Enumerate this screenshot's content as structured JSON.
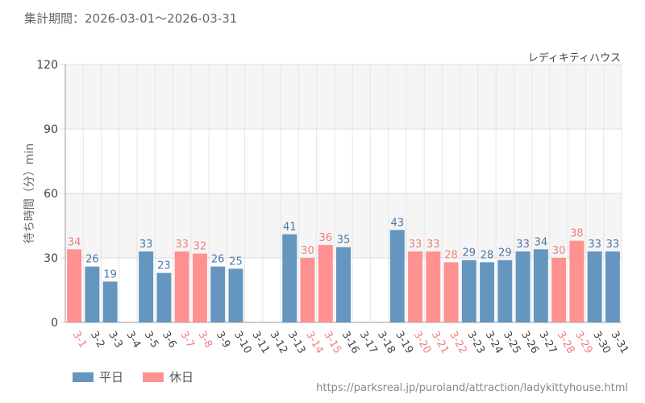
{
  "header": {
    "period": "集計期間：2026-03-01〜2026-03-31"
  },
  "attraction_name": "レディキティハウス",
  "source_url": "https://parksreal.jp/puroland/attraction/ladykittyhouse.html",
  "colors": {
    "weekday": "#6596bf",
    "holiday": "#ff9190",
    "weekday_text": "#4a78a6",
    "holiday_text": "#f07e7e"
  },
  "chart_data": {
    "type": "bar",
    "title": "",
    "xlabel": "",
    "ylabel": "待ち時間（分）min",
    "ylim": [
      0,
      120
    ],
    "yticks": [
      0,
      30,
      60,
      90,
      120
    ],
    "grid": true,
    "legend_position": "bottom-left",
    "categories": [
      "3-1",
      "3-2",
      "3-3",
      "3-4",
      "3-5",
      "3-6",
      "3-7",
      "3-8",
      "3-9",
      "3-10",
      "3-11",
      "3-12",
      "3-13",
      "3-14",
      "3-15",
      "3-16",
      "3-17",
      "3-18",
      "3-19",
      "3-20",
      "3-21",
      "3-22",
      "3-23",
      "3-24",
      "3-25",
      "3-26",
      "3-27",
      "3-28",
      "3-29",
      "3-30",
      "3-31"
    ],
    "values": [
      34,
      26,
      19,
      null,
      33,
      23,
      33,
      32,
      26,
      25,
      null,
      null,
      41,
      30,
      36,
      35,
      null,
      null,
      43,
      33,
      33,
      28,
      29,
      28,
      29,
      33,
      34,
      30,
      38,
      33,
      33
    ],
    "day_type": [
      "holiday",
      "weekday",
      "weekday",
      "weekday",
      "weekday",
      "weekday",
      "holiday",
      "holiday",
      "weekday",
      "weekday",
      "weekday",
      "weekday",
      "weekday",
      "holiday",
      "holiday",
      "weekday",
      "weekday",
      "weekday",
      "weekday",
      "holiday",
      "holiday",
      "holiday",
      "weekday",
      "weekday",
      "weekday",
      "weekday",
      "weekday",
      "holiday",
      "holiday",
      "weekday",
      "weekday"
    ],
    "series": [
      {
        "name": "平日",
        "key": "weekday"
      },
      {
        "name": "休日",
        "key": "holiday"
      }
    ]
  }
}
